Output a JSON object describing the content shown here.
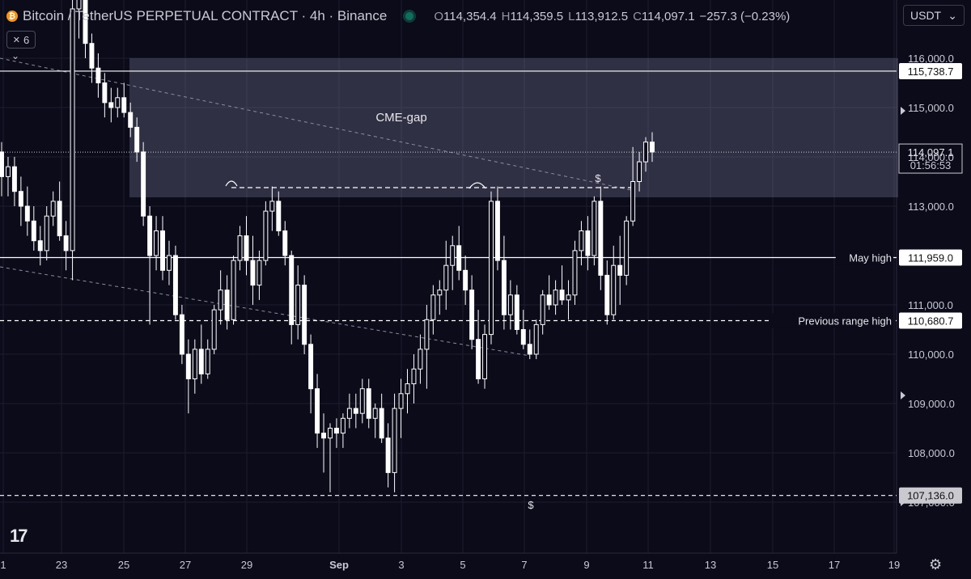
{
  "header": {
    "symbol_title": "Bitcoin / TetherUS PERPETUAL CONTRACT · 4h · Binance",
    "open_label": "O",
    "open": "114,354.4",
    "high_label": "H",
    "high": "114,359.5",
    "low_label": "L",
    "low": "113,912.5",
    "close_label": "C",
    "close": "114,097.1",
    "change": "−257.3 (−0.23%)"
  },
  "indicator_count": "6",
  "currency": {
    "label": "USDT",
    "arrow": "⌄"
  },
  "icons": {
    "coin": "bitcoin-icon",
    "status": "market-status-icon",
    "logo": "tradingview-logo",
    "settings": "gear-icon"
  },
  "colors": {
    "background": "#0b0b1a",
    "candle": "#ffffff",
    "zone": "#7d7d9a"
  },
  "chart_data": {
    "type": "candlestick",
    "y_axis_ticks": [
      "116,000.0",
      "115,000.0",
      "114,000.0",
      "113,000.0",
      "111,000.0",
      "110,000.0",
      "109,000.0",
      "108,000.0",
      "107,000.0"
    ],
    "x_axis_ticks": [
      "1",
      "23",
      "25",
      "27",
      "29",
      "Sep",
      "3",
      "5",
      "7",
      "9",
      "11",
      "13",
      "15",
      "17",
      "19"
    ],
    "ylim": [
      106600,
      116600
    ],
    "grid": true,
    "levels": [
      {
        "price": 115738.7,
        "label": "115,738.7",
        "style": "solid",
        "name": ""
      },
      {
        "price": 111959.0,
        "label": "111,959.0",
        "style": "solid",
        "name": "May high"
      },
      {
        "price": 110680.7,
        "label": "110,680.7",
        "style": "dashed",
        "name": "Previous range high"
      },
      {
        "price": 107136.0,
        "label": "107,136.0",
        "style": "dashed",
        "name": ""
      }
    ],
    "current_price": {
      "price": 114097.1,
      "label": "114,097.1",
      "countdown": "01:56:53"
    },
    "zones": [
      {
        "name": "CME-gap",
        "from": 113180,
        "to": 116000
      }
    ],
    "annotations": [
      {
        "text": "$",
        "at": "equal highs"
      },
      {
        "text": "$",
        "at": "range lows"
      }
    ],
    "candles_ohlc": [
      [
        114100,
        114300,
        113200,
        113600
      ],
      [
        113600,
        114000,
        113200,
        113800
      ],
      [
        113800,
        114000,
        113000,
        113300
      ],
      [
        113300,
        113600,
        112600,
        113000
      ],
      [
        113000,
        113400,
        112400,
        112700
      ],
      [
        112700,
        113000,
        112100,
        112300
      ],
      [
        112300,
        112600,
        111800,
        112100
      ],
      [
        112100,
        113000,
        111900,
        112800
      ],
      [
        112800,
        113300,
        112600,
        113100
      ],
      [
        113100,
        113500,
        112300,
        112400
      ],
      [
        112400,
        112700,
        111700,
        112100
      ],
      [
        112100,
        118000,
        111500,
        117000
      ],
      [
        117000,
        118300,
        116400,
        117200
      ],
      [
        117200,
        117600,
        116000,
        116300
      ],
      [
        116300,
        116500,
        115500,
        115800
      ],
      [
        115800,
        116100,
        115200,
        115500
      ],
      [
        115500,
        115700,
        114800,
        115100
      ],
      [
        115100,
        115400,
        114700,
        115000
      ],
      [
        115000,
        115400,
        114800,
        115200
      ],
      [
        115200,
        115500,
        114800,
        114900
      ],
      [
        114900,
        115100,
        114400,
        114600
      ],
      [
        114600,
        114800,
        113900,
        114100
      ],
      [
        114100,
        114300,
        112600,
        112800
      ],
      [
        112800,
        113000,
        110600,
        112000
      ],
      [
        112000,
        112800,
        111700,
        112500
      ],
      [
        112500,
        112800,
        111500,
        111700
      ],
      [
        111700,
        112300,
        111400,
        112000
      ],
      [
        112000,
        112200,
        110700,
        110800
      ],
      [
        110800,
        111000,
        109800,
        110000
      ],
      [
        110000,
        110300,
        108800,
        109500
      ],
      [
        109500,
        110300,
        109200,
        110100
      ],
      [
        110100,
        110600,
        109400,
        109600
      ],
      [
        109600,
        110300,
        109500,
        110100
      ],
      [
        110100,
        111000,
        110000,
        110900
      ],
      [
        110900,
        111700,
        110600,
        111300
      ],
      [
        111300,
        111600,
        110500,
        110700
      ],
      [
        110700,
        112000,
        110600,
        111900
      ],
      [
        111900,
        112600,
        111700,
        112400
      ],
      [
        112400,
        112800,
        111600,
        111900
      ],
      [
        111900,
        112400,
        111000,
        111400
      ],
      [
        111400,
        112100,
        111100,
        111900
      ],
      [
        111900,
        113100,
        111800,
        112900
      ],
      [
        112900,
        113400,
        112500,
        113100
      ],
      [
        113100,
        113300,
        112400,
        112500
      ],
      [
        112500,
        112700,
        111800,
        112000
      ],
      [
        112000,
        112100,
        110200,
        110600
      ],
      [
        110600,
        111800,
        110300,
        111400
      ],
      [
        111400,
        111600,
        110000,
        110200
      ],
      [
        110200,
        110400,
        108800,
        109300
      ],
      [
        109300,
        109600,
        108100,
        108400
      ],
      [
        108400,
        108800,
        107600,
        108300
      ],
      [
        108300,
        108600,
        107200,
        108500
      ],
      [
        108500,
        108700,
        108100,
        108400
      ],
      [
        108400,
        108800,
        108100,
        108700
      ],
      [
        108700,
        109200,
        108500,
        108900
      ],
      [
        108900,
        109200,
        108500,
        108800
      ],
      [
        108800,
        109500,
        108600,
        109300
      ],
      [
        109300,
        109500,
        108500,
        108700
      ],
      [
        108700,
        109000,
        108300,
        108900
      ],
      [
        108900,
        109200,
        108200,
        108300
      ],
      [
        108300,
        108600,
        107300,
        107600
      ],
      [
        107600,
        109200,
        107200,
        108900
      ],
      [
        108900,
        109500,
        108300,
        109200
      ],
      [
        109200,
        109700,
        108800,
        109400
      ],
      [
        109400,
        110000,
        109000,
        109700
      ],
      [
        109700,
        110400,
        109400,
        110100
      ],
      [
        110100,
        111000,
        109300,
        110700
      ],
      [
        110700,
        111400,
        110400,
        111200
      ],
      [
        111200,
        111500,
        110800,
        111300
      ],
      [
        111300,
        112300,
        110900,
        111800
      ],
      [
        111800,
        112400,
        111300,
        112200
      ],
      [
        112200,
        112600,
        111500,
        111700
      ],
      [
        111700,
        112000,
        111000,
        111300
      ],
      [
        111300,
        111600,
        110100,
        110300
      ],
      [
        110300,
        110900,
        109400,
        109500
      ],
      [
        109500,
        110600,
        109300,
        110400
      ],
      [
        110400,
        113300,
        110200,
        113100
      ],
      [
        113100,
        113400,
        111700,
        111900
      ],
      [
        111900,
        112400,
        110500,
        110800
      ],
      [
        110800,
        111500,
        110500,
        111200
      ],
      [
        111200,
        111400,
        110400,
        110500
      ],
      [
        110500,
        110900,
        110100,
        110200
      ],
      [
        110200,
        110500,
        109900,
        110000
      ],
      [
        110000,
        110700,
        109900,
        110600
      ],
      [
        110600,
        111300,
        110400,
        111200
      ],
      [
        111200,
        111600,
        110900,
        111000
      ],
      [
        111000,
        111500,
        110800,
        111300
      ],
      [
        111300,
        111800,
        111000,
        111100
      ],
      [
        111100,
        111500,
        110700,
        111200
      ],
      [
        111200,
        112300,
        111000,
        112100
      ],
      [
        112100,
        112700,
        111800,
        112500
      ],
      [
        112500,
        112800,
        111700,
        112000
      ],
      [
        112000,
        113200,
        111800,
        113100
      ],
      [
        113100,
        113400,
        111300,
        111600
      ],
      [
        111600,
        111900,
        110600,
        110800
      ],
      [
        110800,
        112200,
        110700,
        111800
      ],
      [
        111800,
        112400,
        111000,
        111600
      ],
      [
        111600,
        112800,
        111400,
        112700
      ],
      [
        112700,
        114200,
        112600,
        113500
      ],
      [
        113500,
        114100,
        113300,
        113900
      ],
      [
        113900,
        114400,
        113700,
        114300
      ],
      [
        114300,
        114500,
        113900,
        114100
      ]
    ]
  }
}
